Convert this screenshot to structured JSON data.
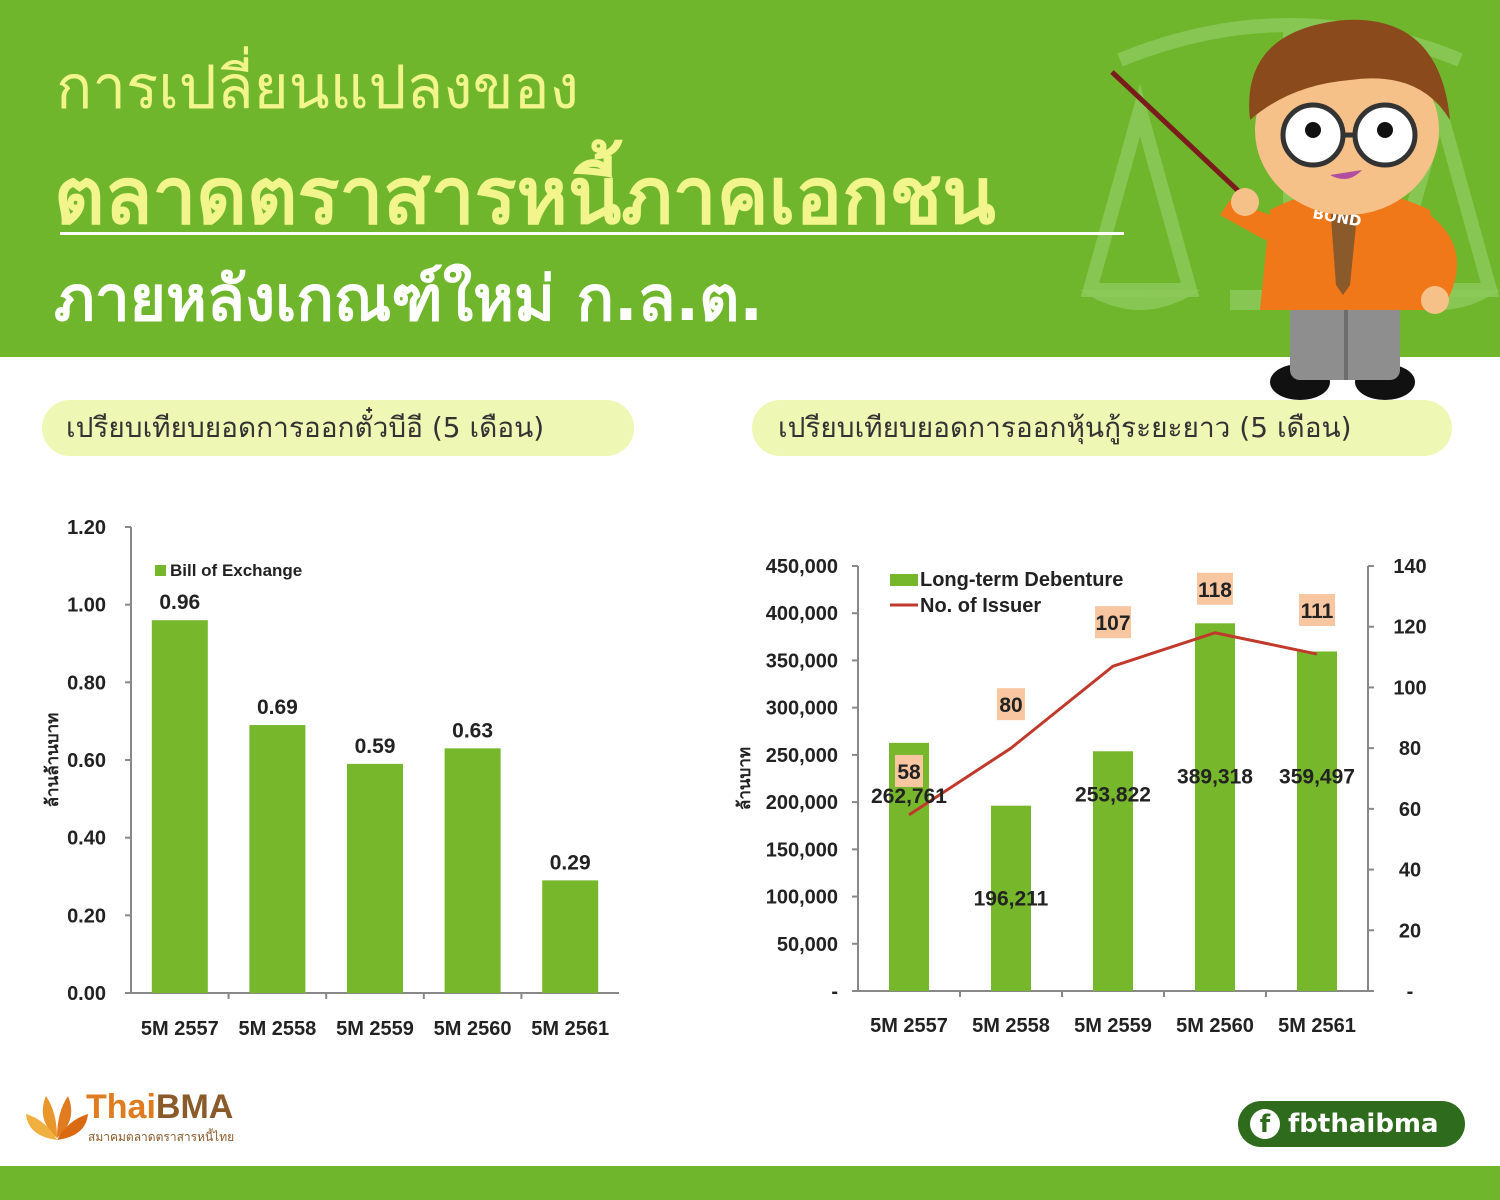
{
  "header": {
    "title_line1": "การเปลี่ยนแปลงของ",
    "title_line2": "ตลาดตราสารหนี้ภาคเอกชน",
    "title_line3": "ภายหลังเกณฑ์ใหม่ ก.ล.ต.",
    "mascot_badge": "BOND"
  },
  "sections": {
    "left_heading": "เปรียบเทียบยอดการออกตั๋วบีอี (5 เดือน)",
    "right_heading": "เปรียบเทียบยอดการออกหุ้นกู้ระยะยาว (5 เดือน)"
  },
  "chart_data": [
    {
      "type": "bar",
      "title": "",
      "categories": [
        "5M 2557",
        "5M 2558",
        "5M 2559",
        "5M 2560",
        "5M 2561"
      ],
      "series": [
        {
          "name": "Bill of Exchange",
          "values": [
            0.96,
            0.69,
            0.59,
            0.63,
            0.29
          ],
          "labels": [
            "0.96",
            "0.69",
            "0.59",
            "0.63",
            "0.29"
          ]
        }
      ],
      "ylabel": "ล้านล้านบาท",
      "ylim": [
        0,
        1.2
      ],
      "yticks": [
        "0.00",
        "0.20",
        "0.40",
        "0.60",
        "0.80",
        "1.00",
        "1.20"
      ],
      "grid": false,
      "legend": "top-left",
      "bar_color": "#76b72c"
    },
    {
      "type": "bar",
      "title": "",
      "categories": [
        "5M 2557",
        "5M 2558",
        "5M 2559",
        "5M 2560",
        "5M 2561"
      ],
      "series": [
        {
          "name": "Long-term Debenture",
          "axis": "left",
          "values": [
            262761,
            196211,
            253822,
            389318,
            359497
          ],
          "labels": [
            "262,761",
            "196,211",
            "253,822",
            "389,318",
            "359,497"
          ]
        },
        {
          "name": "No. of Issuer",
          "type": "line",
          "axis": "right",
          "values": [
            58,
            80,
            107,
            118,
            111
          ],
          "labels": [
            "58",
            "80",
            "107",
            "118",
            "111"
          ]
        }
      ],
      "ylabel": "ล้านบาท",
      "ylim": [
        0,
        450000
      ],
      "yticks": [
        "-",
        "50,000",
        "100,000",
        "150,000",
        "200,000",
        "250,000",
        "300,000",
        "350,000",
        "400,000",
        "450,000"
      ],
      "y2lim": [
        0,
        140
      ],
      "y2ticks": [
        "-",
        "20",
        "40",
        "60",
        "80",
        "100",
        "120",
        "140"
      ],
      "grid": false,
      "legend": "top-left",
      "bar_color": "#76b72c",
      "line_color": "#c0392b"
    }
  ],
  "footer": {
    "logo_thai": "Thai",
    "logo_bma": "BMA",
    "logo_sub": "สมาคมตลาดตราสารหนี้ไทย",
    "fb_icon": "f",
    "fb_handle": "fbthaibma"
  }
}
